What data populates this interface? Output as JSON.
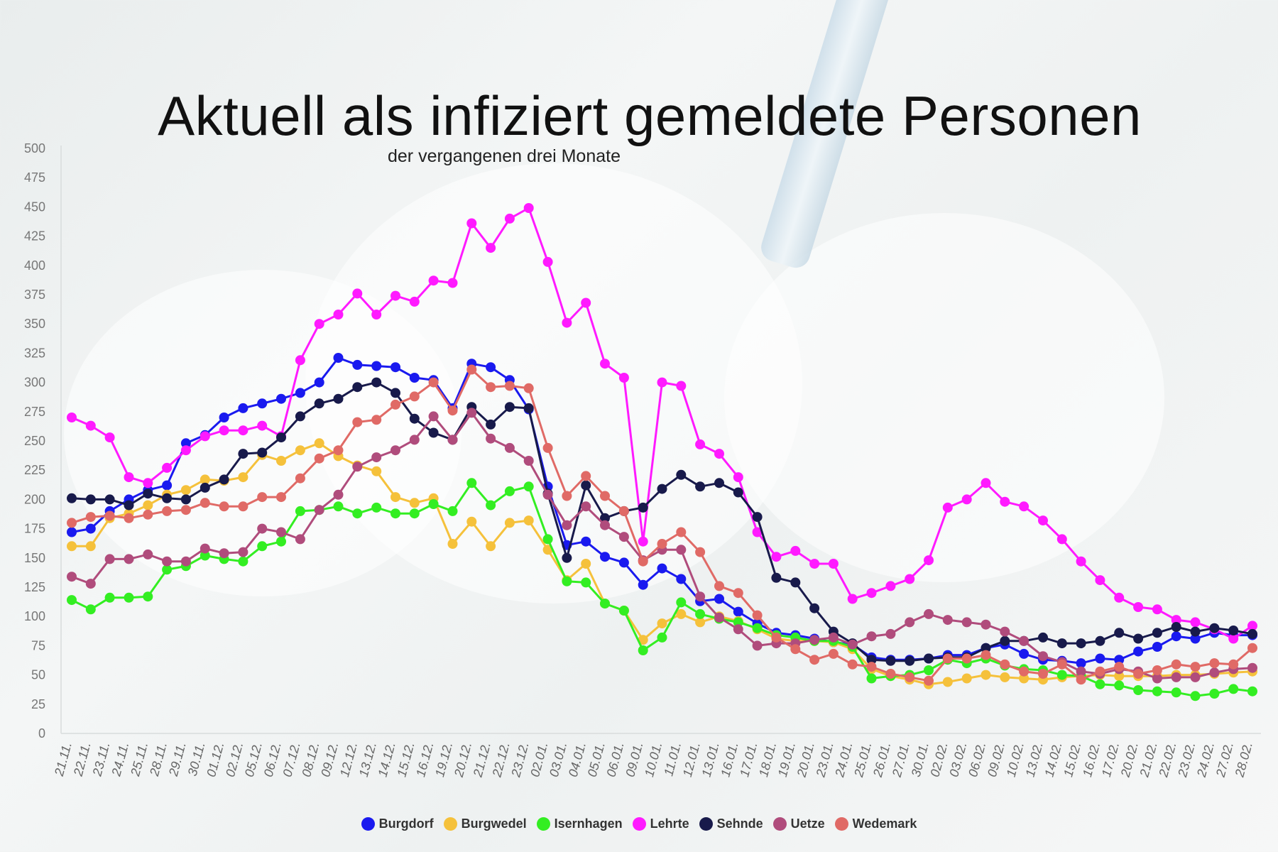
{
  "chart_data": {
    "type": "line",
    "title": "Aktuell als infiziert gemeldete Personen",
    "subtitle": "der vergangenen drei Monate",
    "ylim": [
      0,
      500
    ],
    "yticks": [
      0,
      25,
      50,
      75,
      100,
      125,
      150,
      175,
      200,
      225,
      250,
      275,
      300,
      325,
      350,
      375,
      400,
      425,
      450,
      475,
      500
    ],
    "grid": false,
    "legend_position": "bottom-center",
    "categories": [
      "21.11.",
      "22.11.",
      "23.11.",
      "24.11.",
      "25.11.",
      "28.11.",
      "29.11.",
      "30.11.",
      "01.12.",
      "02.12.",
      "05.12.",
      "06.12.",
      "07.12.",
      "08.12.",
      "09.12.",
      "12.12.",
      "13.12.",
      "14.12.",
      "15.12.",
      "16.12.",
      "19.12.",
      "20.12.",
      "21.12.",
      "22.12.",
      "23.12.",
      "02.01.",
      "03.01.",
      "04.01.",
      "05.01.",
      "06.01.",
      "09.01.",
      "10.01.",
      "11.01.",
      "12.01.",
      "13.01.",
      "16.01.",
      "17.01.",
      "18.01.",
      "19.01.",
      "20.01.",
      "23.01.",
      "24.01.",
      "25.01.",
      "26.01.",
      "27.01.",
      "30.01.",
      "02.02.",
      "03.02.",
      "06.02.",
      "09.02.",
      "10.02.",
      "13.02.",
      "14.02.",
      "15.02.",
      "16.02.",
      "17.02.",
      "20.02.",
      "21.02.",
      "22.02.",
      "23.02.",
      "24.02.",
      "27.02.",
      "28.02."
    ],
    "series": [
      {
        "name": "Burgdorf",
        "color": "#1a1aef",
        "values": [
          172,
          175,
          190,
          200,
          208,
          212,
          248,
          255,
          270,
          278,
          282,
          286,
          291,
          300,
          321,
          315,
          314,
          313,
          304,
          302,
          278,
          316,
          313,
          302,
          277,
          211,
          161,
          164,
          151,
          146,
          127,
          141,
          132,
          113,
          115,
          104,
          94,
          86,
          84,
          81,
          78,
          76,
          65,
          63,
          63,
          64,
          67,
          67,
          73,
          76,
          68,
          63,
          62,
          60,
          64,
          63,
          70,
          74,
          83,
          81,
          86,
          84,
          84
        ]
      },
      {
        "name": "Burgwedel",
        "color": "#f5c13b",
        "values": [
          160,
          160,
          184,
          188,
          195,
          204,
          208,
          217,
          216,
          219,
          238,
          233,
          242,
          248,
          237,
          229,
          224,
          202,
          197,
          201,
          162,
          181,
          160,
          180,
          182,
          157,
          131,
          145,
          111,
          105,
          80,
          94,
          102,
          95,
          100,
          96,
          89,
          81,
          79,
          79,
          78,
          72,
          55,
          49,
          46,
          42,
          44,
          47,
          50,
          48,
          47,
          46,
          48,
          49,
          50,
          49,
          49,
          49,
          50,
          50,
          51,
          52,
          53
        ]
      },
      {
        "name": "Isernhagen",
        "color": "#33ee22",
        "values": [
          114,
          106,
          116,
          116,
          117,
          140,
          143,
          152,
          149,
          147,
          160,
          164,
          190,
          191,
          194,
          188,
          193,
          188,
          188,
          196,
          190,
          214,
          195,
          207,
          211,
          166,
          130,
          129,
          111,
          105,
          71,
          82,
          112,
          102,
          98,
          95,
          90,
          84,
          82,
          79,
          79,
          74,
          47,
          49,
          50,
          54,
          63,
          60,
          64,
          58,
          55,
          54,
          50,
          49,
          42,
          41,
          37,
          36,
          35,
          32,
          34,
          38,
          36
        ]
      },
      {
        "name": "Lehrte",
        "color": "#ff1aff",
        "values": [
          270,
          263,
          253,
          219,
          214,
          227,
          242,
          254,
          259,
          259,
          263,
          254,
          319,
          350,
          358,
          376,
          358,
          374,
          369,
          387,
          385,
          436,
          415,
          440,
          449,
          403,
          351,
          368,
          316,
          304,
          164,
          300,
          297,
          247,
          239,
          219,
          172,
          151,
          156,
          145,
          145,
          115,
          120,
          126,
          132,
          148,
          193,
          200,
          214,
          198,
          194,
          182,
          166,
          147,
          131,
          116,
          108,
          106,
          97,
          95,
          89,
          81,
          92
        ]
      },
      {
        "name": "Sehnde",
        "color": "#181a4b",
        "values": [
          201,
          200,
          200,
          195,
          205,
          201,
          200,
          210,
          217,
          239,
          240,
          253,
          271,
          282,
          286,
          296,
          300,
          291,
          269,
          257,
          251,
          279,
          264,
          279,
          278,
          205,
          150,
          212,
          184,
          190,
          193,
          209,
          221,
          211,
          214,
          206,
          185,
          133,
          129,
          107,
          87,
          77,
          63,
          62,
          62,
          64,
          65,
          65,
          73,
          79,
          79,
          82,
          77,
          77,
          79,
          86,
          81,
          86,
          91,
          87,
          90,
          88,
          85
        ]
      },
      {
        "name": "Uetze",
        "color": "#b04c7c",
        "values": [
          134,
          128,
          149,
          149,
          153,
          147,
          147,
          158,
          154,
          155,
          175,
          172,
          166,
          191,
          204,
          228,
          236,
          242,
          251,
          271,
          251,
          274,
          252,
          244,
          233,
          204,
          178,
          194,
          178,
          168,
          148,
          157,
          157,
          117,
          99,
          89,
          75,
          77,
          77,
          80,
          82,
          76,
          83,
          85,
          95,
          102,
          97,
          95,
          93,
          87,
          79,
          66,
          61,
          53,
          51,
          55,
          53,
          47,
          48,
          48,
          52,
          55,
          56
        ]
      },
      {
        "name": "Wedemark",
        "color": "#e06a66",
        "values": [
          180,
          185,
          186,
          184,
          187,
          190,
          191,
          197,
          194,
          194,
          202,
          202,
          218,
          235,
          242,
          266,
          268,
          281,
          288,
          300,
          276,
          311,
          296,
          297,
          295,
          244,
          203,
          220,
          203,
          190,
          147,
          162,
          172,
          155,
          126,
          120,
          101,
          82,
          72,
          63,
          68,
          59,
          57,
          51,
          48,
          45,
          64,
          64,
          67,
          59,
          53,
          51,
          59,
          46,
          53,
          57,
          51,
          54,
          59,
          57,
          60,
          59,
          73
        ]
      }
    ]
  }
}
